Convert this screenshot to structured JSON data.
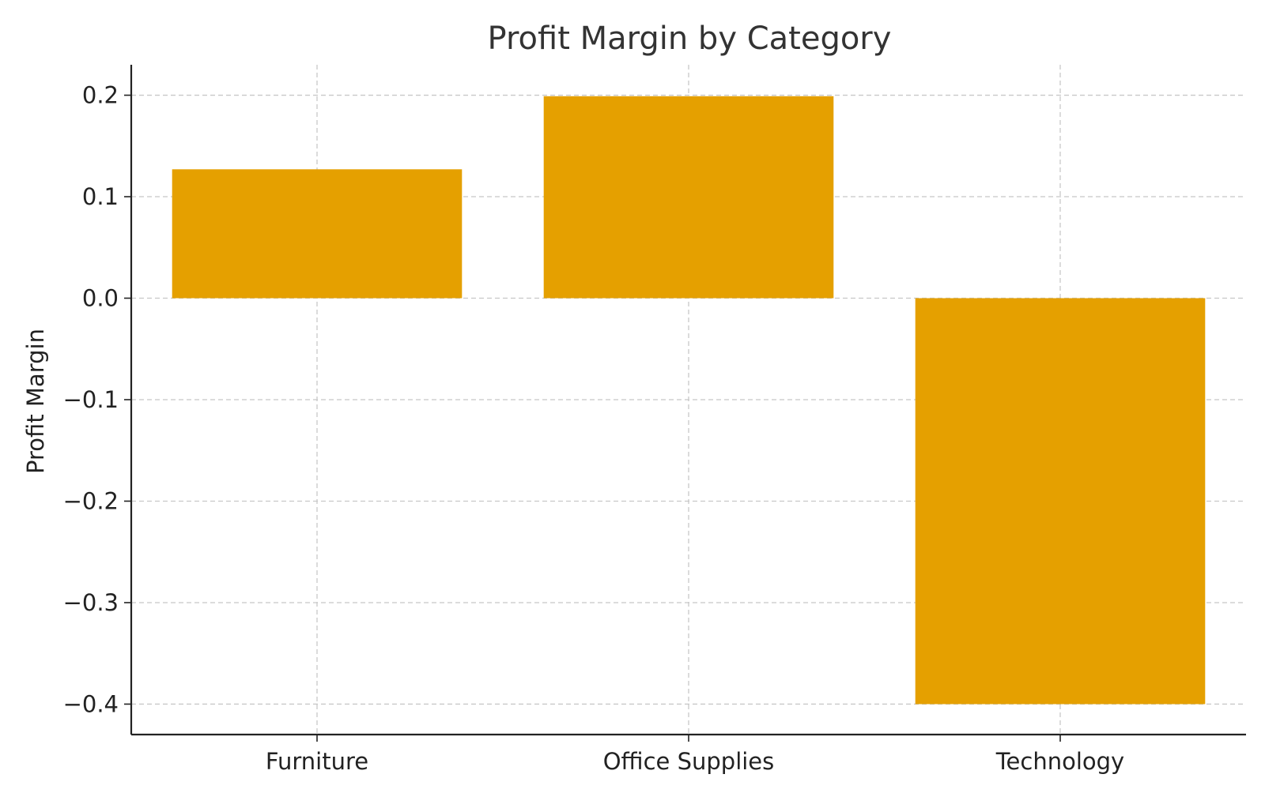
{
  "chart_data": {
    "type": "bar",
    "title": "Profit Margin by Category",
    "xlabel": "",
    "ylabel": "Profit Margin",
    "categories": [
      "Furniture",
      "Office Supplies",
      "Technology"
    ],
    "values": [
      0.127,
      0.199,
      -0.4
    ],
    "ylim": [
      -0.43,
      0.23
    ],
    "yticks": [
      0.2,
      0.1,
      0.0,
      -0.1,
      -0.2,
      -0.3,
      -0.4
    ],
    "ytick_labels": [
      "0.2",
      "0.1",
      "0.0",
      "−0.1",
      "−0.2",
      "−0.3",
      "−0.4"
    ],
    "grid": true,
    "bar_color": "#E5A000"
  }
}
